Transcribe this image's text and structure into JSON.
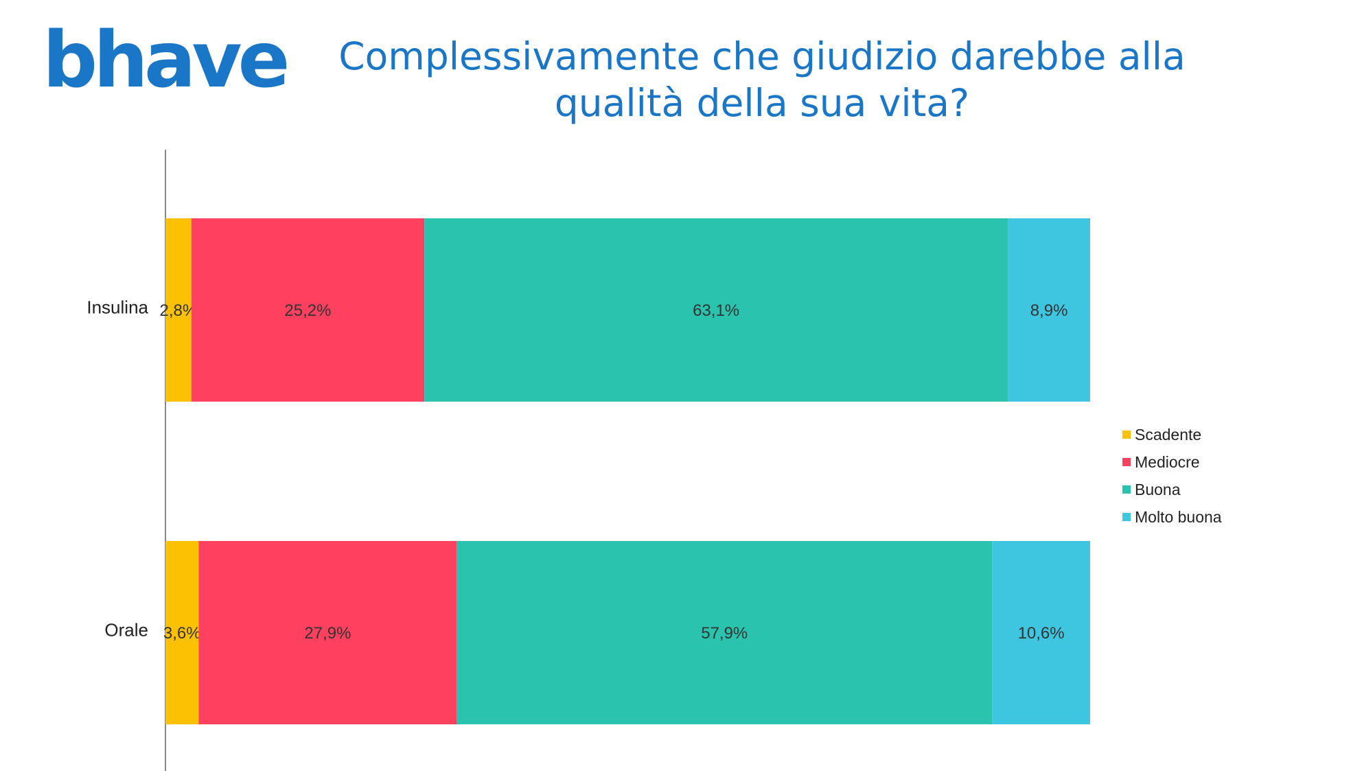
{
  "logo": {
    "text": "bhave",
    "color": "#1a76c6"
  },
  "title": "Complessivamente che giudizio darebbe alla qualità della sua vita?",
  "chart_data": {
    "type": "bar",
    "orientation": "horizontal",
    "stacked": true,
    "categories": [
      "Insulina",
      "Orale"
    ],
    "series": [
      {
        "name": "Scadente",
        "values": [
          2.8,
          3.6
        ],
        "labels": [
          "2,8%",
          "3,6%"
        ],
        "color": "#fdc103"
      },
      {
        "name": "Mediocre",
        "values": [
          25.2,
          27.9
        ],
        "labels": [
          "25,2%",
          "27,9%"
        ],
        "color": "#ff405e"
      },
      {
        "name": "Buona",
        "values": [
          63.1,
          57.9
        ],
        "labels": [
          "63,1%",
          "57,9%"
        ],
        "color": "#2ac3ae"
      },
      {
        "name": "Molto buona",
        "values": [
          8.9,
          10.6
        ],
        "labels": [
          "8,9%",
          "10,6%"
        ],
        "color": "#3ec6e0"
      }
    ],
    "xlim": [
      0,
      100
    ],
    "grid": false,
    "legend_position": "right"
  }
}
